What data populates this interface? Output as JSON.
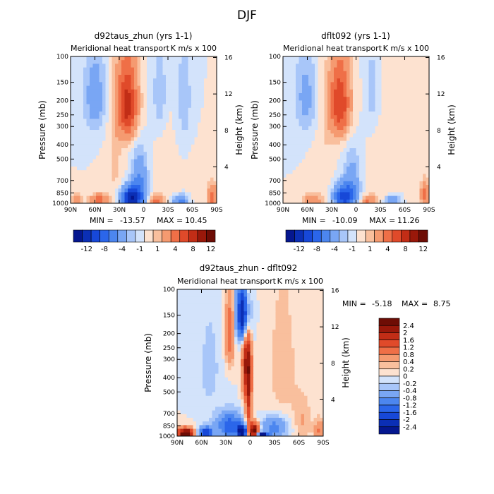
{
  "figure_title": "DJF",
  "min_label": "MIN =",
  "max_label": "MAX =",
  "chart_data": [
    {
      "type": "heatmap",
      "title": "d92taus_zhun (yrs 1-1)",
      "subtitle": "Meridional heat transport",
      "units": "K m/s x 100",
      "ylabel": "Pressure (mb)",
      "y2label": "Height (km)",
      "x_ticks": [
        "90N",
        "60N",
        "30N",
        "0",
        "30S",
        "60S",
        "90S"
      ],
      "y_ticks": [
        100,
        150,
        200,
        250,
        300,
        400,
        500,
        700,
        850,
        1000
      ],
      "y2_ticks": [
        16,
        12,
        8,
        4
      ],
      "min": "-13.57",
      "max": "10.45",
      "colorbar_labels": [
        "-12",
        "-8",
        "-4",
        "-1",
        "1",
        "4",
        "8",
        "12"
      ],
      "colorbar_colors": [
        "#05178f",
        "#0b2fb5",
        "#1748d8",
        "#2b66ea",
        "#4c86ef",
        "#79a6f4",
        "#a8c6f9",
        "#d3e3fb",
        "#fde2d0",
        "#f9bf9d",
        "#f59a70",
        "#ef6f47",
        "#e04a2a",
        "#c22d16",
        "#99180a",
        "#6e0d05"
      ],
      "features": [
        {
          "lat": 20,
          "p": 215,
          "v": 9,
          "sx": 9,
          "sp": 90
        },
        {
          "lat": 60,
          "p": 190,
          "v": -3,
          "sx": 10,
          "sp": 90
        },
        {
          "lat": -20,
          "p": 180,
          "v": -2,
          "sx": 6,
          "sp": 90
        },
        {
          "lat": -50,
          "p": 200,
          "v": -1.5,
          "sx": 8,
          "sp": 150
        },
        {
          "lat": 35,
          "p": 550,
          "v": 1.2,
          "sx": 8,
          "sp": 350
        },
        {
          "lat": -30,
          "p": 700,
          "v": 1,
          "sx": 10,
          "sp": 300
        },
        {
          "lat": 15,
          "p": 920,
          "v": -12,
          "sx": 9,
          "sp": 110
        },
        {
          "lat": 5,
          "p": 700,
          "v": -4,
          "sx": 7,
          "sp": 200
        },
        {
          "lat": 55,
          "p": 960,
          "v": 5,
          "sx": 8,
          "sp": 70
        },
        {
          "lat": 82,
          "p": 960,
          "v": 3,
          "sx": 5,
          "sp": 80
        },
        {
          "lat": -15,
          "p": 970,
          "v": 5,
          "sx": 6,
          "sp": 60
        },
        {
          "lat": -45,
          "p": 960,
          "v": -5,
          "sx": 7,
          "sp": 60
        },
        {
          "lat": -85,
          "p": 900,
          "v": 5,
          "sx": 4,
          "sp": 120
        },
        {
          "lat": -65,
          "p": 700,
          "v": 0.8,
          "sx": 8,
          "sp": 200
        }
      ]
    },
    {
      "type": "heatmap",
      "title": "dflt092 (yrs 1-1)",
      "subtitle": "Meridional heat transport",
      "units": "K m/s x 100",
      "ylabel": "Pressure (mb)",
      "y2label": "Height (km)",
      "x_ticks": [
        "90N",
        "60N",
        "30N",
        "0",
        "30S",
        "60S",
        "90S"
      ],
      "y_ticks": [
        100,
        150,
        200,
        250,
        300,
        400,
        500,
        700,
        850,
        1000
      ],
      "y2_ticks": [
        16,
        12,
        8,
        4
      ],
      "min": "-10.09",
      "max": "11.26",
      "colorbar_labels": [
        "-12",
        "-8",
        "-4",
        "-1",
        "1",
        "4",
        "8",
        "12"
      ],
      "colorbar_colors": [
        "#05178f",
        "#0b2fb5",
        "#1748d8",
        "#2b66ea",
        "#4c86ef",
        "#79a6f4",
        "#a8c6f9",
        "#d3e3fb",
        "#fde2d0",
        "#f9bf9d",
        "#f59a70",
        "#ef6f47",
        "#e04a2a",
        "#c22d16",
        "#99180a",
        "#6e0d05"
      ],
      "features": [
        {
          "lat": 20,
          "p": 210,
          "v": 8,
          "sx": 9,
          "sp": 90
        },
        {
          "lat": 62,
          "p": 190,
          "v": -2.5,
          "sx": 10,
          "sp": 90
        },
        {
          "lat": -20,
          "p": 175,
          "v": -1.5,
          "sx": 6,
          "sp": 90
        },
        {
          "lat": 40,
          "p": 550,
          "v": 1,
          "sx": 8,
          "sp": 350
        },
        {
          "lat": -30,
          "p": 720,
          "v": 1,
          "sx": 10,
          "sp": 300
        },
        {
          "lat": 15,
          "p": 910,
          "v": -9,
          "sx": 9,
          "sp": 120
        },
        {
          "lat": 5,
          "p": 700,
          "v": -3,
          "sx": 7,
          "sp": 200
        },
        {
          "lat": 55,
          "p": 960,
          "v": 4,
          "sx": 8,
          "sp": 70
        },
        {
          "lat": -15,
          "p": 970,
          "v": 4,
          "sx": 6,
          "sp": 60
        },
        {
          "lat": -45,
          "p": 960,
          "v": -4,
          "sx": 7,
          "sp": 60
        },
        {
          "lat": -85,
          "p": 880,
          "v": 5,
          "sx": 4,
          "sp": 130
        },
        {
          "lat": -65,
          "p": 650,
          "v": 0.8,
          "sx": 8,
          "sp": 200
        }
      ]
    },
    {
      "type": "heatmap",
      "title": "d92taus_zhun - dflt092",
      "subtitle": "Meridional heat transport",
      "units": "K m/s x 100",
      "ylabel": "Pressure (mb)",
      "y2label": "Height (km)",
      "x_ticks": [
        "90N",
        "60N",
        "30N",
        "0",
        "30S",
        "60S",
        "90S"
      ],
      "y_ticks": [
        100,
        150,
        200,
        250,
        300,
        400,
        500,
        700,
        850,
        1000
      ],
      "y2_ticks": [
        16,
        12,
        8,
        4
      ],
      "min": "-5.18",
      "max": "8.75",
      "colorbar_labels": [
        "2.4",
        "2",
        "1.6",
        "1.2",
        "0.8",
        "0.4",
        "0.2",
        "0",
        "-0.2",
        "-0.4",
        "-0.8",
        "-1.2",
        "-1.6",
        "-2",
        "-2.4"
      ],
      "colorbar_colors": [
        "#6e0d05",
        "#99180a",
        "#c22d16",
        "#e04a2a",
        "#ef6f47",
        "#f59a70",
        "#f9bf9d",
        "#fde2d0",
        "#d3e3fb",
        "#a8c6f9",
        "#79a6f4",
        "#4c86ef",
        "#2b66ea",
        "#1748d8",
        "#0b2fb5",
        "#05178f"
      ],
      "features": [
        {
          "lat": 8,
          "p": 150,
          "v": -3,
          "sx": 6,
          "sp": 50
        },
        {
          "lat": 5,
          "p": 300,
          "v": 1.6,
          "sx": 4,
          "sp": 150
        },
        {
          "lat": 2,
          "p": 550,
          "v": 1.6,
          "sx": 3,
          "sp": 300
        },
        {
          "lat": 25,
          "p": 200,
          "v": 1.2,
          "sx": 4,
          "sp": 80
        },
        {
          "lat": 50,
          "p": 350,
          "v": -0.3,
          "sx": 10,
          "sp": 200
        },
        {
          "lat": -40,
          "p": 350,
          "v": 0.3,
          "sx": 15,
          "sp": 300
        },
        {
          "lat": 25,
          "p": 850,
          "v": -1.5,
          "sx": 12,
          "sp": 120
        },
        {
          "lat": -30,
          "p": 870,
          "v": -1,
          "sx": 12,
          "sp": 100
        },
        {
          "lat": 10,
          "p": 930,
          "v": -3,
          "sx": 4,
          "sp": 60
        },
        {
          "lat": -5,
          "p": 920,
          "v": 3,
          "sx": 4,
          "sp": 80
        },
        {
          "lat": 80,
          "p": 960,
          "v": 3,
          "sx": 7,
          "sp": 60
        },
        {
          "lat": 55,
          "p": 950,
          "v": -2,
          "sx": 6,
          "sp": 60
        },
        {
          "lat": -15,
          "p": 990,
          "v": -3,
          "sx": 5,
          "sp": 30
        },
        {
          "lat": -85,
          "p": 920,
          "v": 0.8,
          "sx": 4,
          "sp": 120
        },
        {
          "lat": -65,
          "p": 800,
          "v": 0.4,
          "sx": 8,
          "sp": 200
        }
      ]
    }
  ]
}
